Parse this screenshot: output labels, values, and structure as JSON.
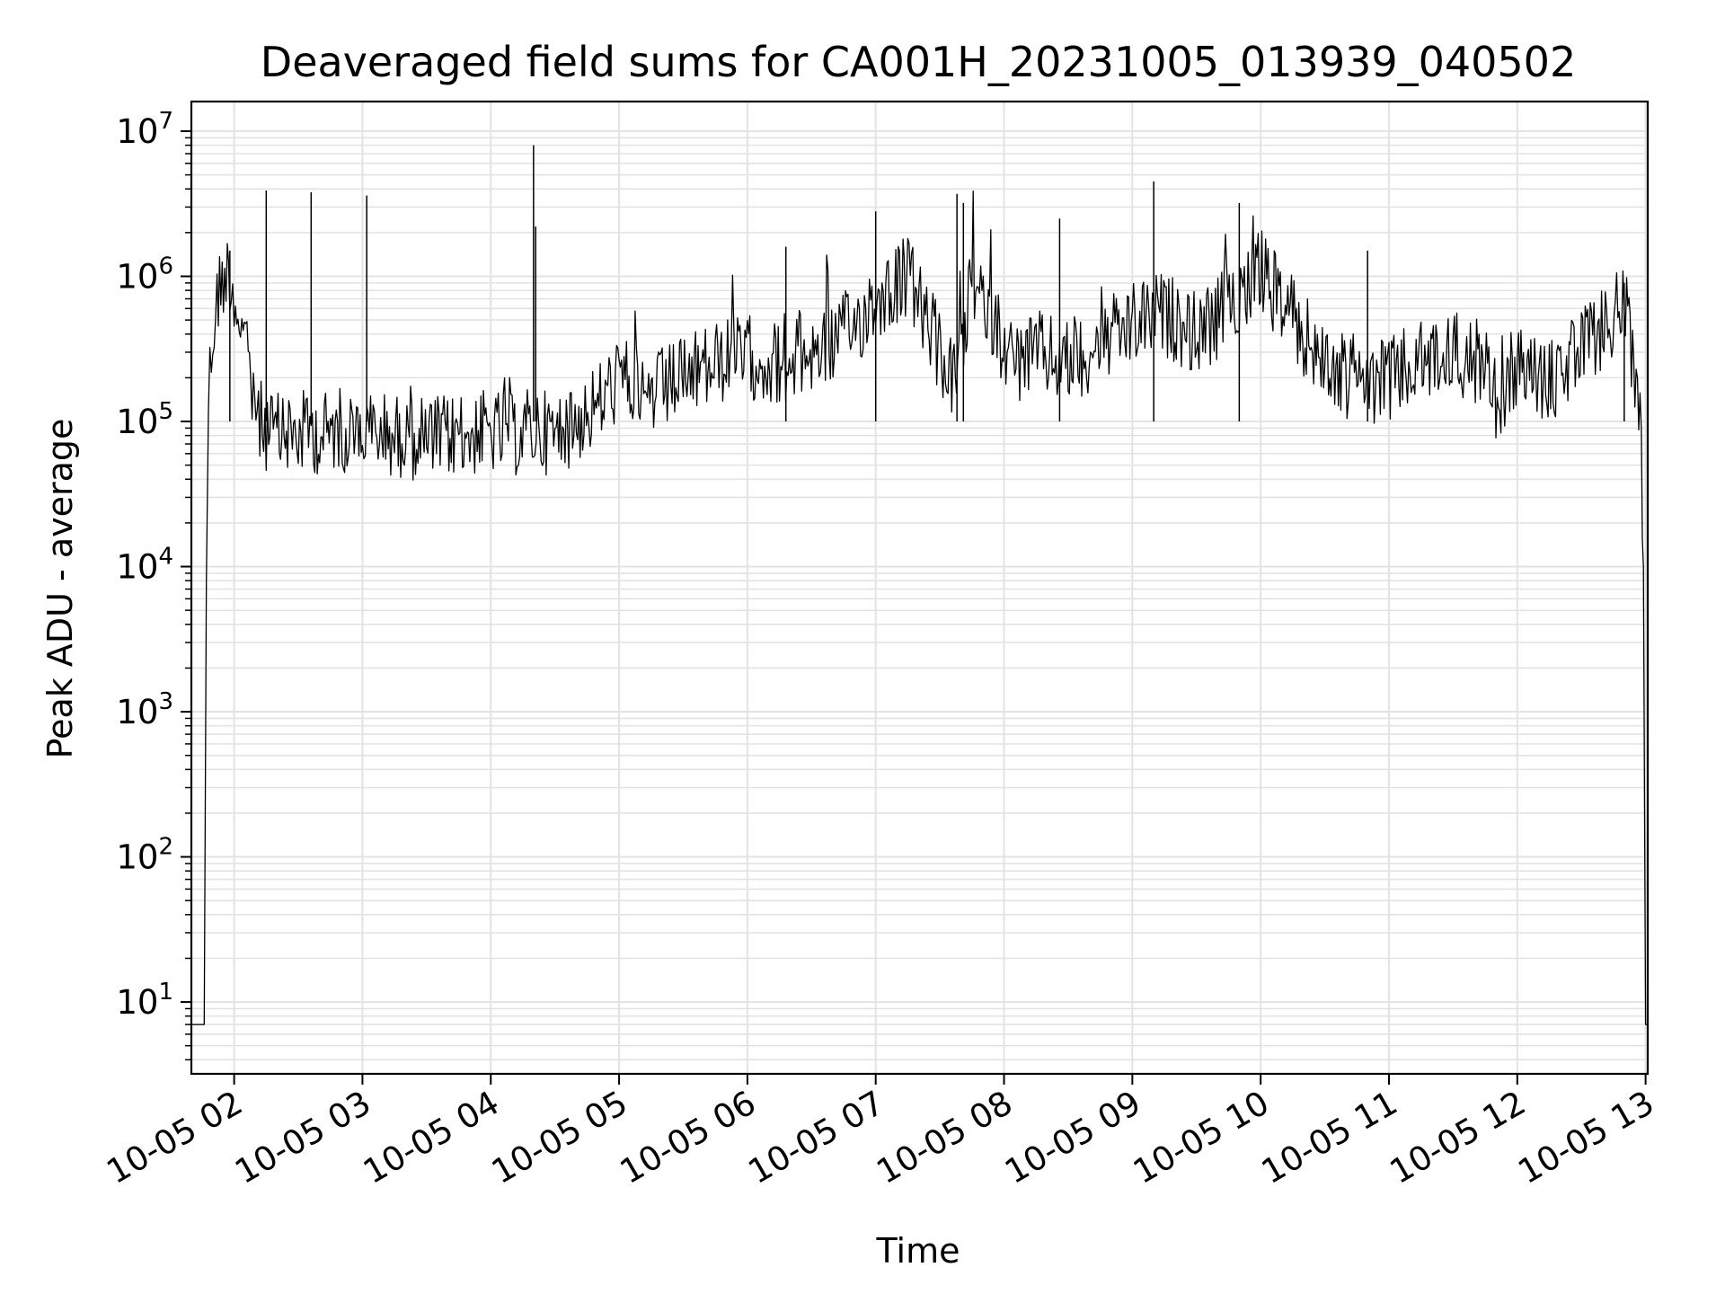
{
  "chart_data": {
    "type": "line",
    "title": "Deaveraged field sums for CA001H_20231005_013939_040502",
    "xlabel": "Time",
    "ylabel": "Peak ADU - average",
    "yscale": "log",
    "ylim": [
      3.2,
      16000000.0
    ],
    "xlim": [
      "2023-10-05 01:40",
      "2023-10-05 13:01"
    ],
    "x_ticks": [
      {
        "value": "2023-10-05 02:00",
        "label": "10-05 02"
      },
      {
        "value": "2023-10-05 03:00",
        "label": "10-05 03"
      },
      {
        "value": "2023-10-05 04:00",
        "label": "10-05 04"
      },
      {
        "value": "2023-10-05 05:00",
        "label": "10-05 05"
      },
      {
        "value": "2023-10-05 06:00",
        "label": "10-05 06"
      },
      {
        "value": "2023-10-05 07:00",
        "label": "10-05 07"
      },
      {
        "value": "2023-10-05 08:00",
        "label": "10-05 08"
      },
      {
        "value": "2023-10-05 09:00",
        "label": "10-05 09"
      },
      {
        "value": "2023-10-05 10:00",
        "label": "10-05 10"
      },
      {
        "value": "2023-10-05 11:00",
        "label": "10-05 11"
      },
      {
        "value": "2023-10-05 12:00",
        "label": "10-05 12"
      },
      {
        "value": "2023-10-05 13:00",
        "label": "10-05 13"
      }
    ],
    "y_ticks": [
      {
        "value": 10,
        "base": "10",
        "exp": "1"
      },
      {
        "value": 100,
        "base": "10",
        "exp": "2"
      },
      {
        "value": 1000,
        "base": "10",
        "exp": "3"
      },
      {
        "value": 10000,
        "base": "10",
        "exp": "4"
      },
      {
        "value": 100000,
        "base": "10",
        "exp": "5"
      },
      {
        "value": 1000000,
        "base": "10",
        "exp": "6"
      },
      {
        "value": 10000000,
        "base": "10",
        "exp": "7"
      }
    ],
    "grid": true,
    "line_color": "#000000",
    "grid_color": "#e3e3e3",
    "series": [
      {
        "x": [
          "2023-10-05 01:40",
          "2023-10-05 01:44",
          "2023-10-05 01:46",
          "2023-10-05 01:47",
          "2023-10-05 01:48",
          "2023-10-05 01:50",
          "2023-10-05 01:52",
          "2023-10-05 01:55",
          "2023-10-05 01:58",
          "2023-10-05 02:00",
          "2023-10-05 02:03",
          "2023-10-05 02:06",
          "2023-10-05 02:09",
          "2023-10-05 02:12",
          "2023-10-05 02:15",
          "2023-10-05 02:20",
          "2023-10-05 02:25",
          "2023-10-05 02:30",
          "2023-10-05 02:36",
          "2023-10-05 02:40",
          "2023-10-05 02:45",
          "2023-10-05 02:50",
          "2023-10-05 02:55",
          "2023-10-05 03:00",
          "2023-10-05 03:02",
          "2023-10-05 03:05",
          "2023-10-05 03:15",
          "2023-10-05 03:30",
          "2023-10-05 03:45",
          "2023-10-05 04:00",
          "2023-10-05 04:10",
          "2023-10-05 04:20",
          "2023-10-05 04:30",
          "2023-10-05 04:40",
          "2023-10-05 04:50",
          "2023-10-05 05:00",
          "2023-10-05 05:15",
          "2023-10-05 05:30",
          "2023-10-05 05:45",
          "2023-10-05 06:00",
          "2023-10-05 06:15",
          "2023-10-05 06:30",
          "2023-10-05 06:40",
          "2023-10-05 06:50",
          "2023-10-05 07:00",
          "2023-10-05 07:10",
          "2023-10-05 07:15",
          "2023-10-05 07:25",
          "2023-10-05 07:35",
          "2023-10-05 07:40",
          "2023-10-05 07:45",
          "2023-10-05 07:55",
          "2023-10-05 08:05",
          "2023-10-05 08:15",
          "2023-10-05 08:30",
          "2023-10-05 08:45",
          "2023-10-05 09:00",
          "2023-10-05 09:10",
          "2023-10-05 09:20",
          "2023-10-05 09:30",
          "2023-10-05 09:40",
          "2023-10-05 09:50",
          "2023-10-05 10:00",
          "2023-10-05 10:15",
          "2023-10-05 10:30",
          "2023-10-05 10:45",
          "2023-10-05 11:00",
          "2023-10-05 11:15",
          "2023-10-05 11:30",
          "2023-10-05 11:45",
          "2023-10-05 11:50",
          "2023-10-05 12:00",
          "2023-10-05 12:15",
          "2023-10-05 12:30",
          "2023-10-05 12:40",
          "2023-10-05 12:50",
          "2023-10-05 12:55",
          "2023-10-05 12:58",
          "2023-10-05 12:59",
          "2023-10-05 13:00",
          "2023-10-05 13:01"
        ],
        "y": [
          7,
          7,
          7,
          10000,
          150000,
          400000,
          700000,
          1000000,
          1100000,
          700000,
          500000,
          250000,
          150000,
          100000,
          90000,
          80000,
          85000,
          80000,
          90000,
          80000,
          85000,
          90000,
          80000,
          90000,
          80000,
          85000,
          80000,
          75000,
          80000,
          85000,
          80000,
          90000,
          80000,
          100000,
          130000,
          200000,
          150000,
          200000,
          250000,
          280000,
          250000,
          300000,
          350000,
          450000,
          700000,
          900000,
          1000000,
          450000,
          200000,
          250000,
          900000,
          500000,
          250000,
          300000,
          250000,
          350000,
          450000,
          550000,
          500000,
          400000,
          500000,
          800000,
          1100000,
          500000,
          250000,
          180000,
          200000,
          250000,
          300000,
          250000,
          140000,
          250000,
          180000,
          300000,
          450000,
          650000,
          200000,
          80000,
          10000,
          7,
          7
        ]
      }
    ],
    "spikes": [
      {
        "x": "2023-10-05 01:58",
        "y": 1500000
      },
      {
        "x": "2023-10-05 02:15",
        "y": 3900000
      },
      {
        "x": "2023-10-05 02:36",
        "y": 3800000
      },
      {
        "x": "2023-10-05 03:02",
        "y": 3600000
      },
      {
        "x": "2023-10-05 04:20",
        "y": 8000000
      },
      {
        "x": "2023-10-05 04:21",
        "y": 2200000
      },
      {
        "x": "2023-10-05 06:18",
        "y": 1600000
      },
      {
        "x": "2023-10-05 07:00",
        "y": 2800000
      },
      {
        "x": "2023-10-05 07:38",
        "y": 3700000
      },
      {
        "x": "2023-10-05 07:41",
        "y": 3200000
      },
      {
        "x": "2023-10-05 08:26",
        "y": 2500000
      },
      {
        "x": "2023-10-05 09:10",
        "y": 4500000
      },
      {
        "x": "2023-10-05 09:50",
        "y": 3200000
      },
      {
        "x": "2023-10-05 10:50",
        "y": 1500000
      },
      {
        "x": "2023-10-05 12:50",
        "y": 900000
      }
    ]
  }
}
